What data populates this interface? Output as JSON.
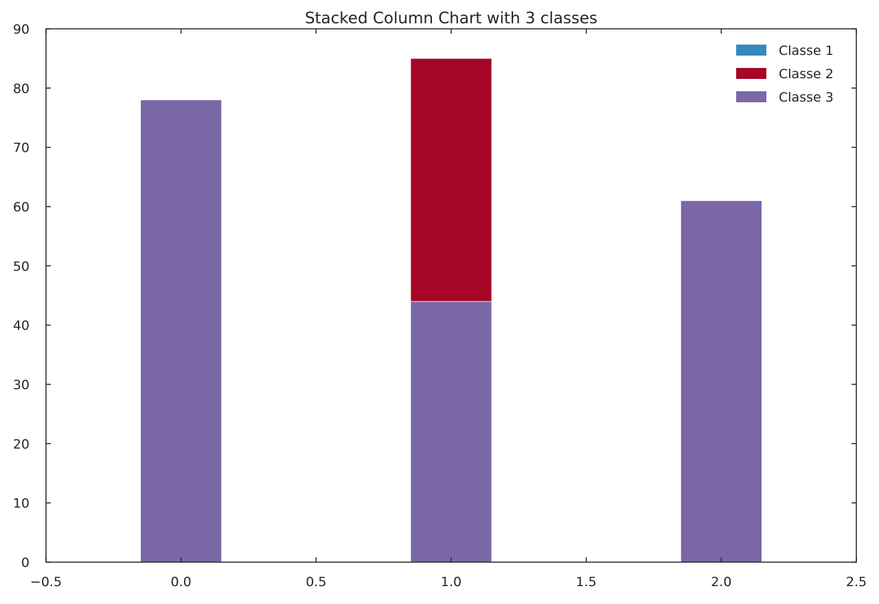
{
  "chart_data": {
    "type": "bar",
    "stacked": true,
    "title": "Stacked Column Chart with 3 classes",
    "xlabel": "",
    "ylabel": "",
    "x": [
      0,
      1,
      2
    ],
    "xlim": [
      -0.5,
      2.5
    ],
    "ylim": [
      0,
      90
    ],
    "xticks": [
      "−0.5",
      "0.0",
      "0.5",
      "1.0",
      "1.5",
      "2.0",
      "2.5"
    ],
    "yticks": [
      "0",
      "10",
      "20",
      "30",
      "40",
      "50",
      "60",
      "70",
      "80",
      "90"
    ],
    "bar_width": 0.3,
    "series": [
      {
        "name": "Classe 3",
        "values": [
          78,
          44,
          61
        ],
        "color": "#7a68a6"
      },
      {
        "name": "Classe 2",
        "values": [
          0,
          41,
          0
        ],
        "color": "#a60628"
      },
      {
        "name": "Classe 1",
        "values": [
          0,
          0,
          0
        ],
        "color": "#348abd"
      }
    ],
    "legend": {
      "position": "top-right",
      "entries": [
        "Classe 1",
        "Classe 2",
        "Classe 3"
      ]
    },
    "grid": false
  }
}
